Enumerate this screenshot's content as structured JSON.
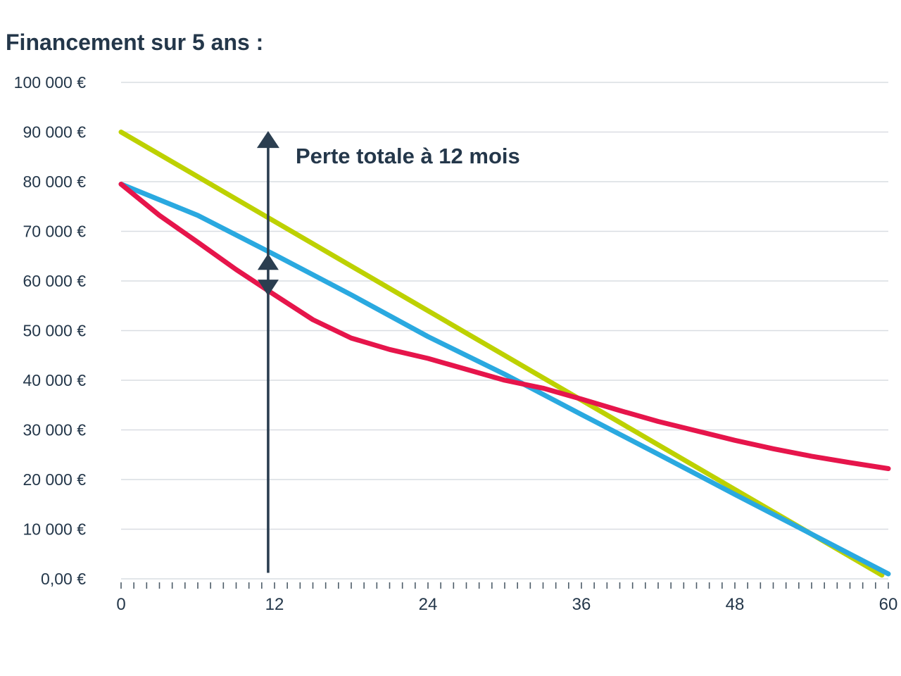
{
  "title": "Financement sur 5 ans :",
  "colors": {
    "text": "#24374a",
    "grid": "#d9dde2",
    "tick": "#4d5c68",
    "annotation": "#2b3e50",
    "green": "#bdd100",
    "blue": "#2aa9e0",
    "red": "#e6154b"
  },
  "chart_data": {
    "type": "line",
    "title": "Financement sur 5 ans :",
    "xlabel": "",
    "ylabel": "",
    "grid": "horizontal",
    "legend": "none",
    "x_axis": {
      "range": [
        0,
        60
      ],
      "ticks": [
        {
          "value": 0,
          "label": "0"
        },
        {
          "value": 12,
          "label": "12"
        },
        {
          "value": 24,
          "label": "24"
        },
        {
          "value": 36,
          "label": "36"
        },
        {
          "value": 48,
          "label": "48"
        },
        {
          "value": 60,
          "label": "60"
        }
      ],
      "minor_tick_step": 1
    },
    "y_axis": {
      "range": [
        0,
        100000
      ],
      "ticks": [
        {
          "value": 100000,
          "label": "100 000 €"
        },
        {
          "value": 90000,
          "label": "90 000 €"
        },
        {
          "value": 80000,
          "label": "80 000 €"
        },
        {
          "value": 70000,
          "label": "70 000 €"
        },
        {
          "value": 60000,
          "label": "60 000 €"
        },
        {
          "value": 50000,
          "label": "50 000 €"
        },
        {
          "value": 40000,
          "label": "40 000 €"
        },
        {
          "value": 30000,
          "label": "30 000 €"
        },
        {
          "value": 20000,
          "label": "20 000 €"
        },
        {
          "value": 10000,
          "label": "10 000 €"
        },
        {
          "value": 0,
          "label": "0,00 €"
        }
      ]
    },
    "series": [
      {
        "name": "line-green",
        "color": "#bdd100",
        "x": [
          0,
          12,
          24,
          36,
          48,
          59.5
        ],
        "values": [
          90000,
          72000,
          54000,
          36000,
          18000,
          750
        ]
      },
      {
        "name": "line-blue",
        "color": "#2aa9e0",
        "x": [
          0,
          6,
          12,
          18,
          24,
          30,
          36,
          42,
          48,
          54,
          60
        ],
        "values": [
          79500,
          73200,
          65300,
          57200,
          48800,
          41200,
          33100,
          25100,
          17000,
          9000,
          1000
        ]
      },
      {
        "name": "line-red",
        "color": "#e6154b",
        "x": [
          0,
          3,
          6,
          9,
          12,
          15,
          18,
          21,
          24,
          27,
          30,
          33,
          36,
          39,
          42,
          45,
          48,
          51,
          54,
          57,
          60
        ],
        "values": [
          79500,
          73200,
          67800,
          62300,
          57200,
          52200,
          48500,
          46200,
          44400,
          42200,
          40000,
          38400,
          36200,
          33900,
          31700,
          29800,
          27900,
          26200,
          24700,
          23400,
          22200
        ]
      }
    ],
    "annotation": {
      "label": "Perte totale à 12 mois",
      "x_month": 11.5,
      "line_from_value": 1200,
      "line_to_value": 87500,
      "big_arrow_tip_value": 90200,
      "up_marker_tip_value": 65500,
      "down_marker_tip_value": 57000
    }
  }
}
